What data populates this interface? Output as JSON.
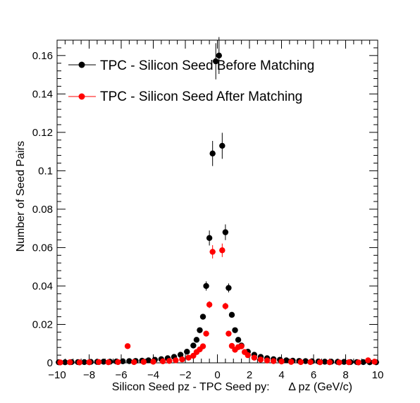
{
  "chart_data": {
    "type": "scatter",
    "title": "",
    "xlabel": "Silicon Seed pz - TPC Seed py:      Δ pz (GeV/c)",
    "ylabel": "Number of Seed Pairs",
    "xlim": [
      -10,
      10
    ],
    "ylim": [
      0,
      0.168
    ],
    "x_ticks": [
      -10,
      -8,
      -6,
      -4,
      -2,
      0,
      2,
      4,
      6,
      8,
      10
    ],
    "x_tick_labels": [
      "−10",
      "−8",
      "−6",
      "−4",
      "−2",
      "0",
      "2",
      "4",
      "6",
      "8",
      "10"
    ],
    "y_ticks": [
      0,
      0.02,
      0.04,
      0.06,
      0.08,
      0.1,
      0.12,
      0.14,
      0.16
    ],
    "y_tick_labels": [
      "0",
      "0.02",
      "0.04",
      "0.06",
      "0.08",
      "0.1",
      "0.12",
      "0.14",
      "0.16"
    ],
    "grid": false,
    "legend_position": "top-left",
    "series": [
      {
        "name": "TPC - Silicon Seed Before Matching",
        "color": "#000000",
        "points": [
          [
            -9.9,
            0.0003
          ],
          [
            -9.5,
            0.0003
          ],
          [
            -9.1,
            0.0004
          ],
          [
            -8.7,
            0.0004
          ],
          [
            -8.3,
            0.0004
          ],
          [
            -7.9,
            0.0005
          ],
          [
            -7.5,
            0.0005
          ],
          [
            -7.1,
            0.0006
          ],
          [
            -6.7,
            0.0006
          ],
          [
            -6.3,
            0.0007
          ],
          [
            -5.9,
            0.0008
          ],
          [
            -5.5,
            0.0009
          ],
          [
            -5.1,
            0.001
          ],
          [
            -4.7,
            0.0011
          ],
          [
            -4.3,
            0.0013
          ],
          [
            -3.9,
            0.0016
          ],
          [
            -3.5,
            0.0019
          ],
          [
            -3.1,
            0.0024
          ],
          [
            -2.7,
            0.0031
          ],
          [
            -2.3,
            0.0042
          ],
          [
            -1.9,
            0.0058
          ],
          [
            -1.5,
            0.009
          ],
          [
            -1.3,
            0.012
          ],
          [
            -1.1,
            0.017
          ],
          [
            -0.9,
            0.024
          ],
          [
            -0.7,
            0.04
          ],
          [
            -0.5,
            0.065
          ],
          [
            -0.3,
            0.109
          ],
          [
            -0.1,
            0.157
          ],
          [
            0.1,
            0.16
          ],
          [
            0.3,
            0.113
          ],
          [
            0.5,
            0.068
          ],
          [
            0.7,
            0.039
          ],
          [
            0.9,
            0.025
          ],
          [
            1.1,
            0.017
          ],
          [
            1.3,
            0.012
          ],
          [
            1.5,
            0.009
          ],
          [
            1.9,
            0.0058
          ],
          [
            2.3,
            0.0042
          ],
          [
            2.7,
            0.0031
          ],
          [
            3.1,
            0.0024
          ],
          [
            3.5,
            0.0019
          ],
          [
            3.9,
            0.0016
          ],
          [
            4.3,
            0.0013
          ],
          [
            4.7,
            0.0011
          ],
          [
            5.1,
            0.001
          ],
          [
            5.5,
            0.0009
          ],
          [
            5.9,
            0.0008
          ],
          [
            6.3,
            0.0007
          ],
          [
            6.7,
            0.0006
          ],
          [
            7.1,
            0.0006
          ],
          [
            7.5,
            0.0005
          ],
          [
            7.9,
            0.0005
          ],
          [
            8.3,
            0.0004
          ],
          [
            8.7,
            0.0004
          ],
          [
            9.1,
            0.0004
          ],
          [
            9.5,
            0.0003
          ],
          [
            9.9,
            0.0003
          ]
        ]
      },
      {
        "name": "TPC - Silicon Seed After Matching",
        "color": "#ff0000",
        "points": [
          [
            -9.8,
            0.0002
          ],
          [
            -9.2,
            0.0003
          ],
          [
            -8.6,
            0.0002
          ],
          [
            -8.0,
            0.0003
          ],
          [
            -7.4,
            0.0004
          ],
          [
            -6.8,
            0.0003
          ],
          [
            -6.2,
            0.0004
          ],
          [
            -5.6,
            0.0087
          ],
          [
            -5.2,
            0.0004
          ],
          [
            -4.6,
            0.0005
          ],
          [
            -4.0,
            0.0006
          ],
          [
            -3.4,
            0.0008
          ],
          [
            -3.0,
            0.001
          ],
          [
            -2.6,
            0.0013
          ],
          [
            -2.2,
            0.0018
          ],
          [
            -1.8,
            0.0027
          ],
          [
            -1.5,
            0.0037
          ],
          [
            -1.3,
            0.0056
          ],
          [
            -1.1,
            0.007
          ],
          [
            -0.9,
            0.0086
          ],
          [
            -0.7,
            0.0152
          ],
          [
            -0.5,
            0.0303
          ],
          [
            -0.3,
            0.0578
          ],
          [
            0.3,
            0.0586
          ],
          [
            0.5,
            0.0295
          ],
          [
            0.7,
            0.0152
          ],
          [
            0.9,
            0.0088
          ],
          [
            1.1,
            0.0068
          ],
          [
            1.3,
            0.0082
          ],
          [
            1.5,
            0.0086
          ],
          [
            1.7,
            0.0056
          ],
          [
            1.9,
            0.004
          ],
          [
            2.3,
            0.0027
          ],
          [
            2.7,
            0.0017
          ],
          [
            3.1,
            0.0012
          ],
          [
            3.5,
            0.0009
          ],
          [
            4.0,
            0.0007
          ],
          [
            4.6,
            0.0005
          ],
          [
            5.2,
            0.0004
          ],
          [
            5.8,
            0.0004
          ],
          [
            6.4,
            0.0003
          ],
          [
            7.0,
            0.0003
          ],
          [
            7.6,
            0.0002
          ],
          [
            8.2,
            0.0003
          ],
          [
            8.8,
            0.0002
          ],
          [
            9.4,
            0.0013
          ],
          [
            9.8,
            0.0006
          ]
        ]
      }
    ]
  }
}
